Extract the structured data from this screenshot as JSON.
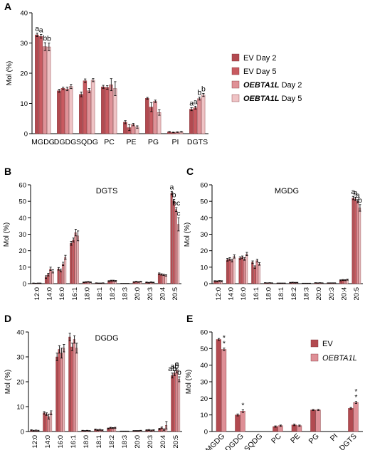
{
  "colors": {
    "ev_day2": "#b24a50",
    "ev_day5": "#c85a60",
    "oe_day2": "#df9197",
    "oe_day5": "#efc3c5",
    "ev": "#b24a50",
    "oe": "#de8f96"
  },
  "chart_data": [
    {
      "panel": "A",
      "type": "bar",
      "title": "",
      "ylabel": "Mol (%)",
      "ylim": [
        0,
        40
      ],
      "yticks": [
        0,
        10,
        20,
        30,
        40
      ],
      "categories": [
        "MGDG",
        "DGDG",
        "SQDG",
        "PC",
        "PE",
        "PG",
        "PI",
        "DGTS"
      ],
      "legend": {
        "placement": "right",
        "entries": [
          "EV  Day 2",
          "EV  Day 5",
          "OEBTA1L  Day 2",
          "OEBTA1L  Day 5"
        ]
      },
      "series": [
        {
          "name": "EV  Day 2",
          "color_key": "ev_day2",
          "values": [
            32.7,
            14.2,
            13.0,
            15.5,
            3.8,
            11.7,
            0.6,
            8.1
          ],
          "errors": [
            0.6,
            0.5,
            0.8,
            0.5,
            0.5,
            0.3,
            0.1,
            0.5
          ]
        },
        {
          "name": "EV  Day 5",
          "color_key": "ev_day5",
          "values": [
            32.2,
            15.0,
            17.5,
            15.3,
            2.0,
            8.8,
            0.4,
            8.6
          ],
          "errors": [
            0.6,
            0.4,
            0.6,
            0.6,
            1.0,
            1.5,
            0.1,
            0.5
          ]
        },
        {
          "name": "OEBTA1L  Day 2",
          "color_key": "oe_day2",
          "values": [
            28.8,
            14.8,
            14.2,
            16.2,
            3.0,
            10.7,
            0.5,
            11.6
          ],
          "errors": [
            1.3,
            0.6,
            0.7,
            2.0,
            0.4,
            0.4,
            0.1,
            0.5
          ]
        },
        {
          "name": "OEBTA1L  Day 5",
          "color_key": "oe_day5",
          "values": [
            28.7,
            15.6,
            17.7,
            14.9,
            2.2,
            7.0,
            0.6,
            12.8
          ],
          "errors": [
            1.3,
            0.7,
            0.5,
            2.3,
            0.4,
            0.9,
            0.1,
            0.5
          ]
        }
      ],
      "annotations": [
        {
          "category": "MGDG",
          "series": 0,
          "text": "a"
        },
        {
          "category": "MGDG",
          "series": 1,
          "text": "a"
        },
        {
          "category": "MGDG",
          "series": 2,
          "text": "b"
        },
        {
          "category": "MGDG",
          "series": 3,
          "text": "b"
        },
        {
          "category": "DGTS",
          "series": 0,
          "text": "a"
        },
        {
          "category": "DGTS",
          "series": 1,
          "text": "a"
        },
        {
          "category": "DGTS",
          "series": 2,
          "text": "b"
        },
        {
          "category": "DGTS",
          "series": 3,
          "text": "b"
        }
      ]
    },
    {
      "panel": "B",
      "type": "bar",
      "title": "DGTS",
      "ylabel": "Mol (%)",
      "ylim": [
        0,
        60
      ],
      "yticks": [
        0,
        10,
        20,
        30,
        40,
        50,
        60
      ],
      "categories": [
        "12:0",
        "14:0",
        "16:0",
        "16:1",
        "18:0",
        "18:1",
        "18:2",
        "18:3",
        "20:0",
        "20:3",
        "20:4",
        "20:5"
      ],
      "series": [
        {
          "name": "EV  Day 2",
          "values": [
            0.3,
            4.0,
            9.0,
            24.5,
            0.8,
            0.4,
            1.5,
            0.1,
            1.0,
            0.8,
            6.0,
            55.0
          ],
          "errors": [
            0.1,
            0.8,
            0.8,
            1.2,
            0.2,
            0.1,
            0.3,
            0.1,
            0.2,
            0.2,
            0.5,
            1.0
          ]
        },
        {
          "name": "EV  Day 5",
          "values": [
            0.2,
            5.5,
            8.0,
            26.5,
            1.0,
            0.3,
            1.8,
            0.1,
            1.2,
            0.6,
            5.6,
            50.0
          ],
          "errors": [
            0.1,
            0.8,
            0.8,
            1.2,
            0.2,
            0.1,
            0.3,
            0.1,
            0.2,
            0.2,
            0.4,
            1.2
          ]
        },
        {
          "name": "OEBTA1L  Day 2",
          "values": [
            0.3,
            9.0,
            12.0,
            31.0,
            1.1,
            0.3,
            1.8,
            0.1,
            1.0,
            0.9,
            5.3,
            45.0
          ],
          "errors": [
            0.1,
            1.0,
            1.0,
            2.0,
            0.2,
            0.1,
            0.3,
            0.1,
            0.2,
            0.2,
            0.4,
            1.2
          ]
        },
        {
          "name": "OEBTA1L  Day 5",
          "values": [
            0.3,
            7.5,
            16.0,
            29.0,
            0.9,
            0.4,
            1.6,
            0.1,
            1.2,
            0.7,
            5.0,
            36.0
          ],
          "errors": [
            0.1,
            1.0,
            1.2,
            3.0,
            0.2,
            0.1,
            0.3,
            0.1,
            0.2,
            0.2,
            0.4,
            4.0
          ]
        }
      ],
      "annotations": [
        {
          "category": "20:5",
          "series": 0,
          "text": "a"
        },
        {
          "category": "20:5",
          "series": 1,
          "text": "b"
        },
        {
          "category": "20:5",
          "series": 2,
          "text": "bc"
        },
        {
          "category": "20:5",
          "series": 3,
          "text": "c"
        }
      ]
    },
    {
      "panel": "C",
      "type": "bar",
      "title": "MGDG",
      "ylabel": "Mol (%)",
      "ylim": [
        0,
        60
      ],
      "yticks": [
        0,
        10,
        20,
        30,
        40,
        50,
        60
      ],
      "categories": [
        "12:0",
        "14:0",
        "16:0",
        "16:1",
        "18:0",
        "18:1",
        "18:2",
        "18:3",
        "20:0",
        "20:3",
        "20:4",
        "20:5"
      ],
      "series": [
        {
          "name": "EV  Day 2",
          "values": [
            1.5,
            14.5,
            15.5,
            13.0,
            0.5,
            0.3,
            0.6,
            0.2,
            0.5,
            0.4,
            2.0,
            52.0
          ],
          "errors": [
            0.3,
            0.8,
            0.8,
            0.8,
            0.1,
            0.1,
            0.2,
            0.1,
            0.1,
            0.1,
            0.3,
            1.0
          ]
        },
        {
          "name": "EV  Day 5",
          "values": [
            1.4,
            15.0,
            16.0,
            10.0,
            0.4,
            0.3,
            0.7,
            0.2,
            0.4,
            0.4,
            2.2,
            51.5
          ],
          "errors": [
            0.3,
            0.8,
            0.8,
            0.8,
            0.1,
            0.1,
            0.2,
            0.1,
            0.1,
            0.1,
            0.3,
            1.0
          ]
        },
        {
          "name": "OEBTA1L  Day 2",
          "values": [
            1.6,
            14.0,
            15.0,
            14.0,
            0.5,
            0.3,
            0.6,
            0.2,
            0.5,
            0.4,
            2.1,
            50.0
          ],
          "errors": [
            0.3,
            0.8,
            0.8,
            0.8,
            0.1,
            0.1,
            0.2,
            0.1,
            0.1,
            0.1,
            0.3,
            1.0
          ]
        },
        {
          "name": "OEBTA1L  Day 5",
          "values": [
            1.5,
            16.5,
            18.0,
            12.0,
            0.4,
            0.3,
            0.6,
            0.2,
            0.4,
            0.4,
            2.4,
            46.0
          ],
          "errors": [
            0.3,
            1.0,
            1.0,
            0.8,
            0.1,
            0.1,
            0.2,
            0.1,
            0.1,
            0.1,
            0.3,
            2.0
          ]
        }
      ],
      "annotations": [
        {
          "category": "20:5",
          "series": 0,
          "text": "a"
        },
        {
          "category": "20:5",
          "series": 1,
          "text": "a"
        },
        {
          "category": "20:5",
          "series": 2,
          "text": "a"
        },
        {
          "category": "20:5",
          "series": 3,
          "text": "b"
        }
      ]
    },
    {
      "panel": "D",
      "type": "bar",
      "title": "DGDG",
      "ylabel": "Mol (%)",
      "ylim": [
        0,
        40
      ],
      "yticks": [
        0,
        10,
        20,
        30,
        40
      ],
      "categories": [
        "12:0",
        "14:0",
        "16:0",
        "16:1",
        "18:0",
        "18:1",
        "18:2",
        "18:3",
        "20:0",
        "20:3",
        "20:4",
        "20:5"
      ],
      "series": [
        {
          "name": "EV  Day 2",
          "values": [
            0.5,
            7.5,
            30.0,
            38.0,
            0.4,
            0.8,
            1.2,
            0.1,
            0.3,
            0.5,
            1.0,
            22.5
          ],
          "errors": [
            0.2,
            0.5,
            1.5,
            1.5,
            0.1,
            0.2,
            0.2,
            0.1,
            0.1,
            0.2,
            0.3,
            1.0
          ]
        },
        {
          "name": "EV  Day 5",
          "values": [
            0.3,
            7.0,
            33.0,
            34.0,
            0.3,
            0.6,
            1.5,
            0.1,
            0.3,
            0.6,
            1.5,
            23.5
          ],
          "errors": [
            0.2,
            0.5,
            1.5,
            1.5,
            0.1,
            0.2,
            0.2,
            0.1,
            0.1,
            0.2,
            0.3,
            1.0
          ]
        },
        {
          "name": "OEBTA1L  Day 2",
          "values": [
            0.4,
            6.0,
            31.5,
            37.0,
            0.4,
            0.7,
            1.4,
            0.1,
            0.3,
            0.4,
            0.8,
            24.5
          ],
          "errors": [
            0.2,
            1.0,
            2.0,
            1.5,
            0.1,
            0.2,
            0.2,
            0.1,
            0.1,
            0.2,
            0.3,
            1.0
          ]
        },
        {
          "name": "OEBTA1L  Day 5",
          "values": [
            0.3,
            7.5,
            33.5,
            33.5,
            0.3,
            0.5,
            1.5,
            0.1,
            0.4,
            0.5,
            2.5,
            21.0
          ],
          "errors": [
            0.2,
            0.8,
            1.5,
            2.0,
            0.1,
            0.2,
            0.2,
            0.1,
            0.1,
            0.2,
            1.5,
            1.0
          ]
        }
      ],
      "annotations": [
        {
          "category": "20:5",
          "series": 0,
          "text": "ab"
        },
        {
          "category": "20:5",
          "series": 1,
          "text": "ab"
        },
        {
          "category": "20:5",
          "series": 2,
          "text": "a"
        },
        {
          "category": "20:5",
          "series": 3,
          "text": "b"
        }
      ]
    },
    {
      "panel": "E",
      "type": "bar",
      "title": "",
      "ylabel": "Mol (%)",
      "ylim": [
        0,
        60
      ],
      "yticks": [
        0,
        10,
        20,
        30,
        40,
        50,
        60
      ],
      "categories": [
        "MGDG",
        "DGDG",
        "SQDG",
        "PC",
        "PE",
        "PG",
        "PI",
        "DGTS"
      ],
      "legend": {
        "placement": "top-right",
        "entries": [
          "EV",
          "OEBTA1L"
        ]
      },
      "series": [
        {
          "name": "EV",
          "color_key": "ev",
          "values": [
            55.5,
            10.0,
            0,
            3.0,
            4.0,
            13.0,
            0,
            14.0
          ],
          "errors": [
            0.6,
            0.6,
            0,
            0.4,
            0.5,
            0.3,
            0,
            0.5
          ]
        },
        {
          "name": "OEBTA1L",
          "color_key": "oe",
          "values": [
            49.5,
            12.3,
            0,
            3.5,
            3.5,
            13.0,
            0,
            17.5
          ],
          "errors": [
            0.8,
            0.8,
            0,
            0.4,
            0.4,
            0.3,
            0,
            0.6
          ]
        }
      ],
      "annotations": [
        {
          "category": "MGDG",
          "series": 1,
          "text": "**"
        },
        {
          "category": "DGDG",
          "series": 1,
          "text": "*"
        },
        {
          "category": "DGTS",
          "series": 1,
          "text": "**"
        }
      ]
    }
  ]
}
